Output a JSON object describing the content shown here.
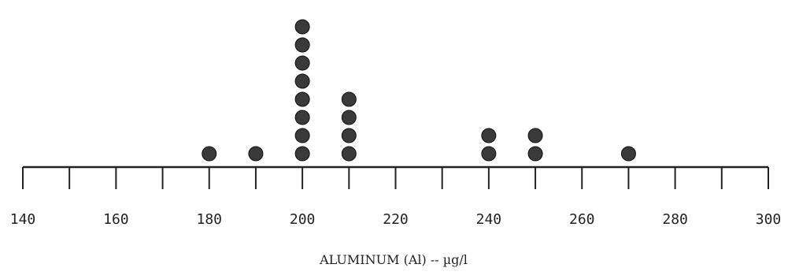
{
  "chart_data": {
    "type": "dot",
    "xlabel": "ALUMINUM (Al) -- µg/l",
    "xlim": [
      140,
      300
    ],
    "x_ticks": [
      140,
      150,
      160,
      170,
      180,
      190,
      200,
      210,
      220,
      230,
      240,
      250,
      260,
      270,
      280,
      290,
      300
    ],
    "x_tick_labels": [
      "140",
      "160",
      "180",
      "200",
      "220",
      "240",
      "260",
      "280",
      "300"
    ],
    "points": [
      {
        "x": 180,
        "count": 1
      },
      {
        "x": 190,
        "count": 1
      },
      {
        "x": 200,
        "count": 8
      },
      {
        "x": 210,
        "count": 4
      },
      {
        "x": 240,
        "count": 2
      },
      {
        "x": 250,
        "count": 2
      },
      {
        "x": 270,
        "count": 1
      }
    ],
    "grid": false,
    "colors": {
      "ink": "#222222",
      "dot": "#3a3a3a"
    }
  }
}
